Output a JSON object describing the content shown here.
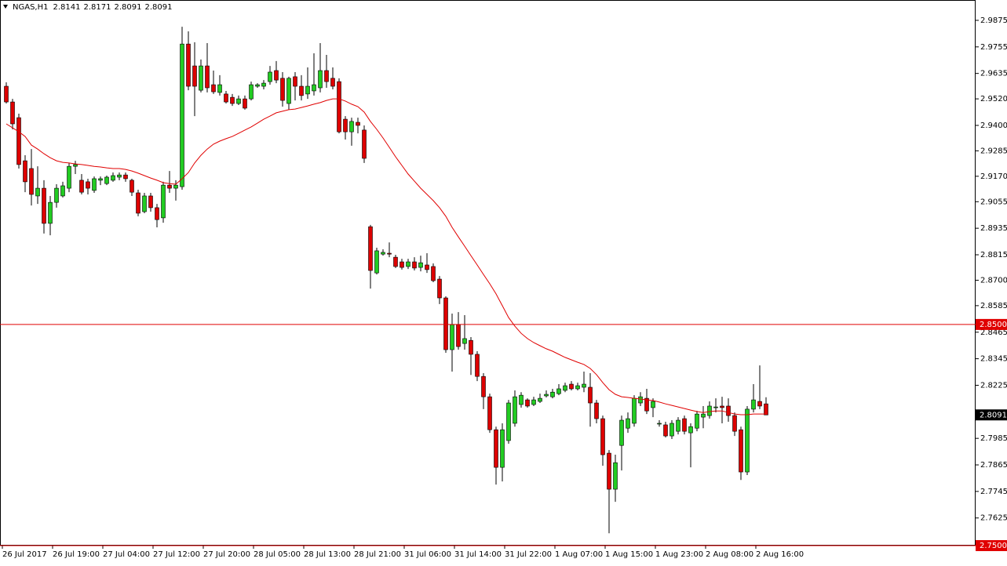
{
  "chart_data": {
    "type": "candlestick",
    "title": "NGAS,H1",
    "categories": [
      "26 Jul 2017",
      null,
      null,
      null,
      null,
      null,
      null,
      null,
      "26 Jul 19:00",
      null,
      null,
      null,
      null,
      null,
      null,
      null,
      "27 Jul 04:00",
      null,
      null,
      null,
      null,
      null,
      null,
      null,
      "27 Jul 12:00",
      null,
      null,
      null,
      null,
      null,
      null,
      null,
      "27 Jul 20:00",
      null,
      null,
      null,
      null,
      null,
      null,
      null,
      "28 Jul 05:00",
      null,
      null,
      null,
      null,
      null,
      null,
      null,
      "28 Jul 13:00",
      null,
      null,
      null,
      null,
      null,
      null,
      null,
      "28 Jul 21:00",
      null,
      null,
      null,
      null,
      null,
      null,
      null,
      "31 Jul 06:00",
      null,
      null,
      null,
      null,
      null,
      null,
      null,
      "31 Jul 14:00",
      null,
      null,
      null,
      null,
      null,
      null,
      null,
      "31 Jul 22:00",
      null,
      null,
      null,
      null,
      null,
      null,
      null,
      "1 Aug 07:00",
      null,
      null,
      null,
      null,
      null,
      null,
      null,
      "1 Aug 15:00",
      null,
      null,
      null,
      null,
      null,
      null,
      null,
      "1 Aug 23:00",
      null,
      null,
      null,
      null,
      null,
      null,
      null,
      "2 Aug 08:00",
      null,
      null,
      null,
      null,
      null,
      null,
      null,
      "2 Aug 16:00",
      null
    ],
    "open": [
      2.9577,
      2.9506,
      2.9435,
      2.924,
      2.9205,
      2.9081,
      2.9116,
      2.8957,
      2.9052,
      2.9081,
      2.9116,
      2.9215,
      2.9152,
      2.9145,
      2.9106,
      2.9152,
      2.9137,
      2.9152,
      2.9166,
      2.9176,
      2.9152,
      2.9095,
      2.901,
      2.9081,
      2.9028,
      2.8982,
      2.913,
      2.9116,
      2.9123,
      2.9768,
      2.9669,
      2.9559,
      2.9669,
      2.9584,
      2.9549,
      2.9542,
      2.9527,
      2.9499,
      2.952,
      2.952,
      2.9577,
      2.9577,
      2.9598,
      2.9648,
      2.9613,
      2.9499,
      2.962,
      2.9577,
      2.9542,
      2.9556,
      2.957,
      2.9648,
      2.9613,
      2.9598,
      2.9428,
      2.9371,
      2.9414,
      2.9379,
      2.8942,
      2.8733,
      2.8818,
      2.8822,
      2.8804,
      2.8783,
      2.8762,
      2.8783,
      2.8758,
      2.8769,
      2.8762,
      2.8705,
      2.862,
      2.8386,
      2.8499,
      2.8414,
      2.8428,
      2.8365,
      2.8265,
      2.8173,
      2.8024,
      2.7854,
      2.7975,
      2.8053,
      2.8138,
      2.8159,
      2.8138,
      2.8152,
      2.8177,
      2.8173,
      2.8187,
      2.8202,
      2.823,
      2.8209,
      2.8216,
      2.8216,
      2.8145,
      2.8074,
      2.7918,
      2.7755,
      2.7953,
      2.8031,
      2.8053,
      2.8145,
      2.8166,
      2.8124,
      2.8053,
      2.8046,
      2.7996,
      2.8017,
      2.8074,
      2.801,
      2.8031,
      2.8081,
      2.8088,
      2.8124,
      2.8131,
      2.8131,
      2.8088,
      2.8024,
      2.7833,
      2.8117,
      2.8152,
      2.8141
    ],
    "high": [
      2.9595,
      2.952,
      2.9453,
      2.9265,
      2.9293,
      2.9215,
      2.9152,
      2.9081,
      2.9134,
      2.9145,
      2.923,
      2.924,
      2.918,
      2.9159,
      2.9169,
      2.9169,
      2.9173,
      2.9187,
      2.9187,
      2.9187,
      2.9159,
      2.9109,
      2.9095,
      2.9095,
      2.9045,
      2.9145,
      2.9194,
      2.9152,
      2.9846,
      2.9825,
      2.9776,
      2.9698,
      2.9772,
      2.9648,
      2.9627,
      2.9556,
      2.9542,
      2.9535,
      2.9535,
      2.9598,
      2.9591,
      2.9605,
      2.9669,
      2.9691,
      2.9641,
      2.962,
      2.9641,
      2.9627,
      2.9662,
      2.9726,
      2.9772,
      2.9719,
      2.9662,
      2.9613,
      2.9442,
      2.9435,
      2.9435,
      2.94,
      2.895,
      2.8847,
      2.884,
      2.8871,
      2.8815,
      2.8797,
      2.8797,
      2.8804,
      2.8811,
      2.8822,
      2.8776,
      2.8719,
      2.8627,
      2.8549,
      2.8556,
      2.8542,
      2.8443,
      2.8379,
      2.828,
      2.8187,
      2.8038,
      2.8053,
      2.8159,
      2.8202,
      2.8194,
      2.8166,
      2.8173,
      2.8187,
      2.8202,
      2.8209,
      2.823,
      2.8237,
      2.8244,
      2.8237,
      2.8287,
      2.828,
      2.8159,
      2.8088,
      2.7932,
      2.7911,
      2.8088,
      2.8102,
      2.818,
      2.8194,
      2.8209,
      2.8166,
      2.8067,
      2.806,
      2.8067,
      2.8081,
      2.8088,
      2.8053,
      2.8109,
      2.8131,
      2.8152,
      2.8166,
      2.8173,
      2.8166,
      2.8102,
      2.8038,
      2.8131,
      2.823,
      2.8315,
      2.8171
    ],
    "low": [
      2.9499,
      2.9382,
      2.9205,
      2.9098,
      2.9038,
      2.9045,
      2.8911,
      2.8903,
      2.9028,
      2.9074,
      2.9098,
      2.918,
      2.9088,
      2.9088,
      2.9095,
      2.913,
      2.913,
      2.9145,
      2.9152,
      2.9145,
      2.9081,
      2.8989,
      2.9003,
      2.901,
      2.8939,
      2.896,
      2.9095,
      2.906,
      2.9109,
      2.9559,
      2.9442,
      2.9549,
      2.9549,
      2.9542,
      2.9535,
      2.9499,
      2.9488,
      2.9492,
      2.9471,
      2.9513,
      2.957,
      2.9563,
      2.9584,
      2.9591,
      2.9485,
      2.9471,
      2.9513,
      2.9513,
      2.952,
      2.9535,
      2.9549,
      2.957,
      2.9563,
      2.9364,
      2.9336,
      2.9308,
      2.9364,
      2.923,
      2.8662,
      2.8726,
      2.8811,
      2.8804,
      2.8755,
      2.8748,
      2.8751,
      2.8744,
      2.874,
      2.8733,
      2.8691,
      2.8592,
      2.8372,
      2.8287,
      2.8386,
      2.8386,
      2.8272,
      2.8244,
      2.8117,
      2.801,
      2.7776,
      2.779,
      2.7961,
      2.8038,
      2.8124,
      2.8124,
      2.8131,
      2.8145,
      2.817,
      2.8166,
      2.818,
      2.8194,
      2.8202,
      2.8202,
      2.8194,
      2.8038,
      2.8053,
      2.7861,
      2.7556,
      2.7698,
      2.784,
      2.801,
      2.8038,
      2.8131,
      2.8095,
      2.8081,
      2.8038,
      2.7989,
      2.7982,
      2.8003,
      2.8003,
      2.7854,
      2.8017,
      2.8031,
      2.8074,
      2.8102,
      2.8053,
      2.806,
      2.7996,
      2.7797,
      2.7819,
      2.8102,
      2.8117,
      2.8091
    ],
    "close": [
      2.9506,
      2.9407,
      2.9223,
      2.9145,
      2.9088,
      2.9116,
      2.8957,
      2.9052,
      2.9116,
      2.9127,
      2.9215,
      2.9223,
      2.9098,
      2.9116,
      2.9159,
      2.9159,
      2.9166,
      2.9173,
      2.9176,
      2.9159,
      2.9098,
      2.9003,
      2.9081,
      2.9028,
      2.8974,
      2.913,
      2.9116,
      2.913,
      2.9768,
      2.9577,
      2.9577,
      2.9669,
      2.957,
      2.9552,
      2.9584,
      2.9506,
      2.9499,
      2.952,
      2.9478,
      2.9584,
      2.9584,
      2.9591,
      2.9641,
      2.9605,
      2.9513,
      2.9613,
      2.9577,
      2.9535,
      2.9577,
      2.9584,
      2.9648,
      2.9598,
      2.9577,
      2.9371,
      2.9371,
      2.9418,
      2.94,
      2.9251,
      2.8744,
      2.8833,
      2.8826,
      2.8818,
      2.8762,
      2.8758,
      2.8783,
      2.8755,
      2.8779,
      2.8748,
      2.8698,
      2.862,
      2.8386,
      2.8499,
      2.84,
      2.8436,
      2.8365,
      2.8265,
      2.8173,
      2.8024,
      2.7854,
      2.8024,
      2.8145,
      2.8173,
      2.818,
      2.8131,
      2.8159,
      2.8166,
      2.8184,
      2.8194,
      2.8209,
      2.8223,
      2.8209,
      2.8223,
      2.823,
      2.8145,
      2.8074,
      2.7911,
      2.7755,
      2.7875,
      2.8067,
      2.8074,
      2.8166,
      2.8173,
      2.8109,
      2.8152,
      2.8053,
      2.7996,
      2.8053,
      2.8067,
      2.8017,
      2.8038,
      2.8095,
      2.8095,
      2.8131,
      2.8127,
      2.8124,
      2.8088,
      2.8017,
      2.7833,
      2.8117,
      2.8159,
      2.8131,
      2.8091
    ],
    "ma": [
      2.9407,
      2.9389,
      2.9371,
      2.935,
      2.9311,
      2.9293,
      2.9272,
      2.9254,
      2.924,
      2.9233,
      2.923,
      2.9226,
      2.9223,
      2.9219,
      2.9215,
      2.9212,
      2.9208,
      2.9205,
      2.9205,
      2.9201,
      2.9194,
      2.9184,
      2.9173,
      2.9162,
      2.9152,
      2.9141,
      2.9137,
      2.9134,
      2.9159,
      2.9187,
      2.923,
      2.9265,
      2.9293,
      2.9315,
      2.9329,
      2.934,
      2.935,
      2.9364,
      2.9379,
      2.9393,
      2.941,
      2.9428,
      2.9442,
      2.9457,
      2.9464,
      2.9471,
      2.9474,
      2.9481,
      2.9488,
      2.9496,
      2.9503,
      2.9513,
      2.952,
      2.952,
      2.951,
      2.9496,
      2.9485,
      2.946,
      2.9418,
      2.9382,
      2.9343,
      2.9301,
      2.9258,
      2.9219,
      2.918,
      2.9148,
      2.9116,
      2.9088,
      2.906,
      2.9028,
      2.8989,
      2.8939,
      2.8896,
      2.8854,
      2.8811,
      2.8769,
      2.8726,
      2.8684,
      2.8638,
      2.8585,
      2.8531,
      2.8492,
      2.846,
      2.8436,
      2.8418,
      2.8404,
      2.839,
      2.8379,
      2.8365,
      2.8351,
      2.834,
      2.8329,
      2.8319,
      2.8301,
      2.8273,
      2.8237,
      2.8205,
      2.8184,
      2.8173,
      2.817,
      2.8166,
      2.8163,
      2.8159,
      2.8156,
      2.8149,
      2.8141,
      2.8134,
      2.8127,
      2.812,
      2.8113,
      2.8106,
      2.8102,
      2.8106,
      2.8109,
      2.8109,
      2.8102,
      2.8095,
      2.8092,
      2.8092,
      2.8095,
      2.8095,
      2.8095
    ],
    "up_color": "#22cc22",
    "down_color": "#dd0000",
    "ma_color": "#e00000",
    "ylim": [
      2.75,
      2.9967
    ],
    "yticks": [
      2.9875,
      2.9755,
      2.9635,
      {
        "value": 2.952,
        "label": "2.9520"
      },
      {
        "value": 2.94,
        "label": "2.9400"
      },
      2.9285,
      {
        "value": 2.917,
        "label": "2.9170"
      },
      2.9055,
      2.8935,
      2.8815,
      {
        "value": 2.87,
        "label": "2.8700"
      },
      2.8585,
      2.8465,
      2.8345,
      2.8225,
      2.7985,
      2.7865,
      2.7745,
      2.7625
    ],
    "levels": [
      {
        "value": 2.85,
        "label": "2.8500",
        "color": "#e00000"
      },
      {
        "value": 2.75,
        "label": "2.7500",
        "color": "#e00000"
      }
    ],
    "grid": false
  }
}
